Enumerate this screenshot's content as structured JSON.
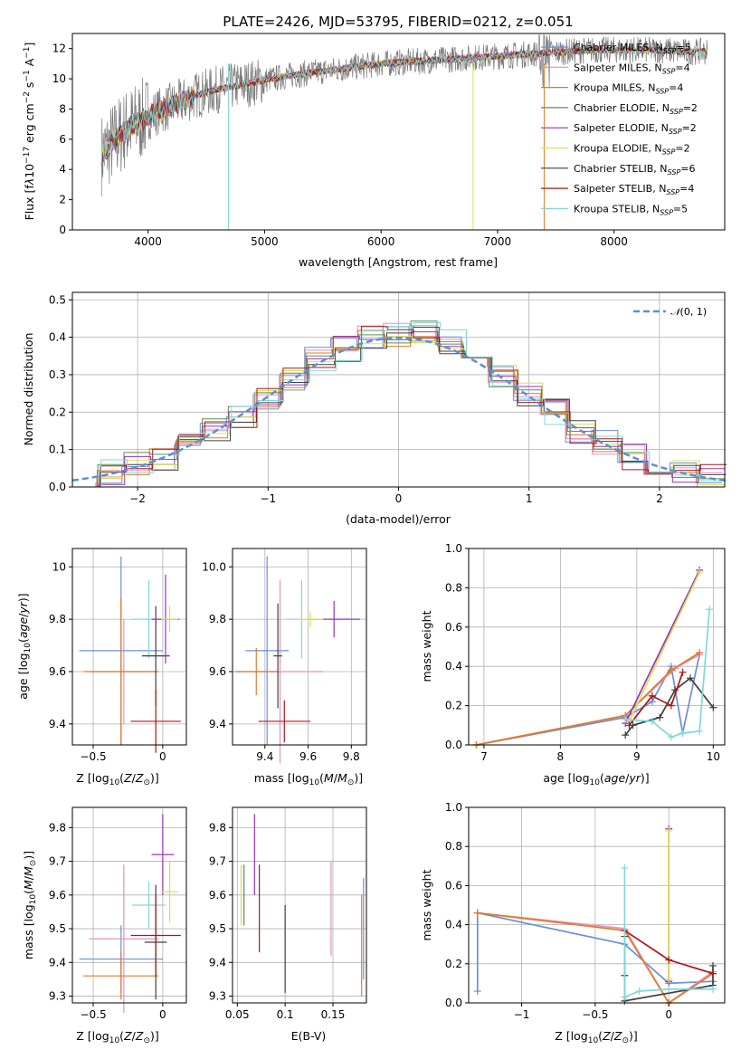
{
  "chart_data": [
    {
      "type": "line",
      "title": "PLATE=2426, MJD=53795, FIBERID=0212, z=0.051",
      "xlabel": "wavelength [Angstrom, rest frame]",
      "ylabel": "Flux [f_λ10^-17 erg cm^-2 s^-1 A^-1]",
      "xlim": [
        3350,
        8950
      ],
      "ylim": [
        0,
        13
      ],
      "xticks": [
        4000,
        5000,
        6000,
        7000,
        8000
      ],
      "yticks": [
        0,
        2,
        4,
        6,
        8,
        10,
        12
      ],
      "legend_position": "top-right",
      "series": [
        {
          "name": "Chabrier MILES, N_SSP=5",
          "color": "#6b8fd6"
        },
        {
          "name": "Salpeter MILES, N_SSP=4",
          "color": "#e88fbf"
        },
        {
          "name": "Kroupa MILES, N_SSP=4",
          "color": "#e07b27"
        },
        {
          "name": "Chabrier ELODIE, N_SSP=2",
          "color": "#5c8f4c"
        },
        {
          "name": "Salpeter ELODIE, N_SSP=2",
          "color": "#9b30c0"
        },
        {
          "name": "Kroupa ELODIE, N_SSP=2",
          "color": "#d8e050"
        },
        {
          "name": "Chabrier STELIB, N_SSP=6",
          "color": "#404040"
        },
        {
          "name": "Salpeter STELIB, N_SSP=4",
          "color": "#b01515"
        },
        {
          "name": "Kroupa STELIB, N_SSP=5",
          "color": "#7fd8de"
        }
      ],
      "continuum": {
        "x": [
          3600,
          3700,
          3800,
          3900,
          4000,
          4100,
          4200,
          4300,
          4400,
          4600,
          4800,
          5000,
          5200,
          5400,
          5600,
          5800,
          6000,
          6200,
          6400,
          6600,
          6800,
          7000,
          7200,
          7400,
          7600,
          7800,
          8000,
          8200,
          8400,
          8600,
          8800
        ],
        "y": [
          5.0,
          5.8,
          6.6,
          7.1,
          7.5,
          7.9,
          8.2,
          8.5,
          8.9,
          9.3,
          9.6,
          9.9,
          10.2,
          10.4,
          10.6,
          10.8,
          11.0,
          11.1,
          11.2,
          11.3,
          11.4,
          11.5,
          11.6,
          11.7,
          11.8,
          11.9,
          11.9,
          11.9,
          11.9,
          11.8,
          11.8
        ]
      }
    },
    {
      "type": "line",
      "xlabel": "(data-model)/error",
      "ylabel": "Normed distribution",
      "xlim": [
        -2.5,
        2.5
      ],
      "ylim": [
        0,
        0.52
      ],
      "xticks": [
        -2,
        -1,
        0,
        1,
        2
      ],
      "yticks": [
        0.0,
        0.1,
        0.2,
        0.3,
        0.4,
        0.5
      ],
      "legend": [
        {
          "name": "N(0,1)",
          "color": "#5b8fd4",
          "style": "dashed"
        }
      ],
      "legend_position": "top-right",
      "histogram": {
        "bin_edges": [
          -2.5,
          -2.3,
          -2.1,
          -1.9,
          -1.7,
          -1.5,
          -1.3,
          -1.1,
          -0.9,
          -0.7,
          -0.5,
          -0.3,
          -0.1,
          0.1,
          0.3,
          0.5,
          0.7,
          0.9,
          1.1,
          1.3,
          1.5,
          1.7,
          1.9,
          2.1,
          2.3,
          2.5
        ],
        "values": [
          0.03,
          0.04,
          0.06,
          0.08,
          0.11,
          0.15,
          0.19,
          0.24,
          0.29,
          0.34,
          0.37,
          0.4,
          0.41,
          0.42,
          0.39,
          0.35,
          0.3,
          0.25,
          0.2,
          0.15,
          0.12,
          0.08,
          0.05,
          0.04,
          0.03
        ]
      }
    },
    {
      "type": "scatter",
      "xlabel": "Z [log10(Z/Z⊙)]",
      "ylabel": "age  [log10(age/yr)]",
      "xlim": [
        -0.65,
        0.17
      ],
      "ylim": [
        9.32,
        10.07
      ],
      "xticks": [
        -0.5,
        0,
        0.5
      ],
      "yticks": [
        9.4,
        9.6,
        9.8,
        10.0
      ],
      "points": [
        {
          "x": -0.3,
          "y": 9.68,
          "xerr": 0.3,
          "yerr": 0.36,
          "color": "#6b8fd6"
        },
        {
          "x": -0.28,
          "y": 9.6,
          "xerr": 0.25,
          "yerr": 0.2,
          "color": "#e88fbf"
        },
        {
          "x": -0.3,
          "y": 9.6,
          "xerr": 0.27,
          "yerr": 0.28,
          "color": "#e07b27"
        },
        {
          "x": -0.1,
          "y": 9.8,
          "xerr": 0.12,
          "yerr": 0.15,
          "color": "#7fd8de"
        },
        {
          "x": -0.05,
          "y": 9.66,
          "xerr": 0.1,
          "yerr": 0.19,
          "color": "#404040"
        },
        {
          "x": 0.02,
          "y": 9.8,
          "xerr": 0.1,
          "yerr": 0.17,
          "color": "#9b30c0"
        },
        {
          "x": 0.05,
          "y": 9.8,
          "xerr": 0.06,
          "yerr": 0.05,
          "color": "#d8e050"
        },
        {
          "x": -0.05,
          "y": 9.41,
          "xerr": 0.18,
          "yerr": 0.12,
          "color": "#b01515"
        }
      ]
    },
    {
      "type": "scatter",
      "xlabel": "mass [log10(M/M⊙)]",
      "xlim": [
        9.25,
        9.87
      ],
      "ylim": [
        9.32,
        10.07
      ],
      "xticks": [
        9.4,
        9.6,
        9.8
      ],
      "yticks": [
        9.4,
        9.6,
        9.8,
        10.0
      ],
      "points": [
        {
          "x": 9.41,
          "y": 9.68,
          "xerr": 0.1,
          "yerr": 0.36,
          "color": "#6b8fd6"
        },
        {
          "x": 9.47,
          "y": 9.6,
          "xerr": 0.2,
          "yerr": 0.35,
          "color": "#e88fbf"
        },
        {
          "x": 9.36,
          "y": 9.6,
          "xerr": 0.1,
          "yerr": 0.09,
          "color": "#e07b27"
        },
        {
          "x": 9.57,
          "y": 9.8,
          "xerr": 0.07,
          "yerr": 0.15,
          "color": "#7fd8de"
        },
        {
          "x": 9.46,
          "y": 9.66,
          "xerr": 0.02,
          "yerr": 0.2,
          "color": "#404040"
        },
        {
          "x": 9.72,
          "y": 9.8,
          "xerr": 0.12,
          "yerr": 0.07,
          "color": "#9b30c0"
        },
        {
          "x": 9.61,
          "y": 9.8,
          "xerr": 0.06,
          "yerr": 0.03,
          "color": "#d8e050"
        },
        {
          "x": 9.49,
          "y": 9.41,
          "xerr": 0.12,
          "yerr": 0.08,
          "color": "#b01515"
        }
      ]
    },
    {
      "type": "line",
      "xlabel": "age  [log10(age/yr)]",
      "ylabel": "mass weight",
      "xlim": [
        6.8,
        10.15
      ],
      "ylim": [
        0,
        1
      ],
      "xticks": [
        7,
        8,
        9,
        10
      ],
      "yticks": [
        0.0,
        0.2,
        0.4,
        0.6,
        0.8,
        1.0
      ],
      "series": [
        {
          "color": "#6b8fd6",
          "x": [
            6.9,
            8.85,
            9.2,
            9.45,
            9.6,
            9.82
          ],
          "y": [
            0.0,
            0.14,
            0.22,
            0.4,
            0.06,
            0.46
          ]
        },
        {
          "color": "#e88fbf",
          "x": [
            6.9,
            8.85,
            9.5,
            9.82
          ],
          "y": [
            0.0,
            0.15,
            0.39,
            0.46
          ]
        },
        {
          "color": "#e07b27",
          "x": [
            6.9,
            8.85,
            9.45,
            9.82
          ],
          "y": [
            0.0,
            0.15,
            0.38,
            0.47
          ]
        },
        {
          "color": "#9b30c0",
          "x": [
            8.85,
            9.82
          ],
          "y": [
            0.11,
            0.89
          ]
        },
        {
          "color": "#d8e050",
          "x": [
            8.9,
            9.82
          ],
          "y": [
            0.12,
            0.88
          ]
        },
        {
          "color": "#404040",
          "x": [
            8.85,
            8.95,
            9.3,
            9.5,
            9.7,
            10.0
          ],
          "y": [
            0.05,
            0.1,
            0.14,
            0.28,
            0.34,
            0.19
          ]
        },
        {
          "color": "#b01515",
          "x": [
            8.9,
            9.2,
            9.45,
            9.6
          ],
          "y": [
            0.1,
            0.25,
            0.2,
            0.37
          ]
        },
        {
          "color": "#7fd8de",
          "x": [
            8.85,
            9.2,
            9.45,
            9.6,
            9.82,
            9.95
          ],
          "y": [
            0.13,
            0.12,
            0.04,
            0.06,
            0.07,
            0.69
          ]
        }
      ]
    },
    {
      "type": "scatter",
      "xlabel": "Z [log10(Z/Z⊙)]",
      "ylabel": "mass [log10(M/M⊙)]",
      "xlim": [
        -0.65,
        0.17
      ],
      "ylim": [
        9.28,
        9.86
      ],
      "xticks": [
        -0.5,
        0,
        0.5
      ],
      "yticks": [
        9.3,
        9.4,
        9.5,
        9.6,
        9.7,
        9.8
      ],
      "points": [
        {
          "x": -0.3,
          "y": 9.41,
          "xerr": 0.3,
          "yerr": 0.1,
          "color": "#6b8fd6"
        },
        {
          "x": -0.28,
          "y": 9.47,
          "xerr": 0.25,
          "yerr": 0.22,
          "color": "#e88fbf"
        },
        {
          "x": -0.3,
          "y": 9.36,
          "xerr": 0.27,
          "yerr": 0.07,
          "color": "#e07b27"
        },
        {
          "x": -0.1,
          "y": 9.57,
          "xerr": 0.12,
          "yerr": 0.07,
          "color": "#7fd8de"
        },
        {
          "x": -0.05,
          "y": 9.46,
          "xerr": 0.08,
          "yerr": 0.17,
          "color": "#404040"
        },
        {
          "x": 0.0,
          "y": 9.72,
          "xerr": 0.08,
          "yerr": 0.12,
          "color": "#9b30c0"
        },
        {
          "x": 0.05,
          "y": 9.61,
          "xerr": 0.06,
          "yerr": 0.09,
          "color": "#d8e050"
        },
        {
          "x": -0.05,
          "y": 9.48,
          "xerr": 0.18,
          "yerr": 0.12,
          "color": "#b01515"
        }
      ]
    },
    {
      "type": "scatter",
      "xlabel": "E(B-V)",
      "xlim": [
        0.045,
        0.185
      ],
      "ylim": [
        9.28,
        9.86
      ],
      "xticks": [
        0.05,
        0.1,
        0.15
      ],
      "yticks": [
        9.3,
        9.4,
        9.5,
        9.6,
        9.7,
        9.8
      ],
      "points": [
        {
          "x": 0.054,
          "y": 9.6,
          "yerr": 0.09,
          "color": "#d8e050"
        },
        {
          "x": 0.057,
          "y": 9.6,
          "yerr": 0.09,
          "color": "#5c8f4c"
        },
        {
          "x": 0.068,
          "y": 9.72,
          "yerr": 0.12,
          "color": "#9b30c0"
        },
        {
          "x": 0.073,
          "y": 9.56,
          "yerr": 0.13,
          "color": "#b01515"
        },
        {
          "x": 0.1,
          "y": 9.44,
          "yerr": 0.13,
          "color": "#404040"
        },
        {
          "x": 0.148,
          "y": 9.56,
          "yerr": 0.14,
          "color": "#e88fbf"
        },
        {
          "x": 0.18,
          "y": 9.45,
          "yerr": 0.15,
          "color": "#e07b27"
        },
        {
          "x": 0.182,
          "y": 9.5,
          "yerr": 0.15,
          "color": "#6b8fd6"
        }
      ]
    },
    {
      "type": "line",
      "xlabel": "Z [log10(Z/Z⊙)]",
      "ylabel": "mass weight",
      "xlim": [
        -1.36,
        0.38
      ],
      "ylim": [
        0,
        1
      ],
      "xticks": [
        -1.0,
        -0.5,
        0.0
      ],
      "yticks": [
        0.0,
        0.2,
        0.4,
        0.6,
        0.8,
        1.0
      ],
      "series": [
        {
          "color": "#6b8fd6",
          "x": [
            -1.3,
            -1.3,
            -0.3,
            0.0,
            0.3
          ],
          "y": [
            0.06,
            0.46,
            0.3,
            0.1,
            0.11
          ]
        },
        {
          "color": "#e88fbf",
          "x": [
            -1.3,
            -0.3,
            0.0,
            0.3
          ],
          "y": [
            0.46,
            0.38,
            0.0,
            0.16
          ]
        },
        {
          "color": "#e07b27",
          "x": [
            -1.3,
            -0.3,
            0.0,
            0.3
          ],
          "y": [
            0.46,
            0.37,
            0.0,
            0.15
          ]
        },
        {
          "color": "#9b30c0",
          "x": [
            0.0,
            0.0
          ],
          "y": [
            0.11,
            0.89
          ]
        },
        {
          "color": "#d8e050",
          "x": [
            0.0,
            0.0
          ],
          "y": [
            0.12,
            0.88
          ]
        },
        {
          "color": "#404040",
          "x": [
            -0.3,
            -0.3,
            -0.3,
            0.3,
            0.3
          ],
          "y": [
            0.14,
            0.34,
            0.01,
            0.09,
            0.19
          ]
        },
        {
          "color": "#b01515",
          "x": [
            -0.3,
            0.0,
            0.3
          ],
          "y": [
            0.37,
            0.22,
            0.15
          ]
        },
        {
          "color": "#7fd8de",
          "x": [
            -0.3,
            -0.3,
            -0.2,
            0.0,
            0.3
          ],
          "y": [
            0.69,
            0.03,
            0.06,
            0.07,
            0.07
          ]
        }
      ]
    }
  ]
}
